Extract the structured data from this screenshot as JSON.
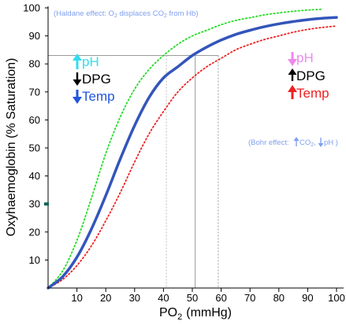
{
  "chart_data": {
    "type": "line",
    "title": "",
    "xlabel": "PO",
    "xlabel_sub": "2",
    "xlabel_unit": "(mmHg)",
    "ylabel": "Oxyhaemoglobin (% Saturation)",
    "xlim": [
      0,
      100
    ],
    "ylim": [
      0,
      100
    ],
    "x_ticks": [
      10,
      20,
      30,
      40,
      50,
      60,
      70,
      80,
      90,
      100
    ],
    "y_ticks": [
      10,
      20,
      30,
      40,
      50,
      60,
      70,
      80,
      90,
      100
    ],
    "grid": false,
    "series": [
      {
        "color": "#22dd22",
        "style": "dotted",
        "x": [
          0,
          5,
          10,
          15,
          20,
          25,
          30,
          35,
          40,
          45,
          50,
          55,
          60,
          65,
          70,
          75,
          80,
          85,
          90,
          95
        ],
        "values": [
          0,
          6,
          17,
          32,
          48,
          61,
          71,
          78,
          83,
          87,
          90,
          92,
          94,
          95.5,
          96.5,
          97.5,
          98.2,
          98.8,
          99.2,
          99.5
        ]
      },
      {
        "color": "#3355bb",
        "style": "solid",
        "x": [
          0,
          5,
          10,
          15,
          20,
          25,
          30,
          35,
          40,
          45,
          50,
          55,
          60,
          65,
          70,
          75,
          80,
          85,
          90,
          95,
          100
        ],
        "values": [
          0,
          4,
          11,
          21,
          33,
          46,
          58,
          68,
          75,
          79,
          83,
          86,
          88.5,
          90.5,
          92,
          93.3,
          94.3,
          95.1,
          95.8,
          96.3,
          96.6
        ]
      },
      {
        "color": "#ee2222",
        "style": "dotted",
        "x": [
          0,
          5,
          10,
          15,
          20,
          25,
          30,
          35,
          40,
          45,
          50,
          55,
          60,
          65,
          70,
          75,
          80,
          85,
          90,
          95,
          100
        ],
        "values": [
          0,
          3,
          8,
          15,
          24,
          34,
          45,
          55,
          63,
          70,
          75,
          79,
          82,
          85,
          87,
          88.7,
          90,
          91.3,
          92.3,
          93,
          93.5
        ]
      }
    ],
    "reference_lines": {
      "y": 83,
      "x": [
        41,
        51,
        59
      ],
      "colors": [
        "#bbbbbb",
        "#999999",
        "#999999"
      ],
      "styles": [
        "dotted",
        "solid",
        "dotted"
      ]
    },
    "highlight_tick": {
      "y": 30,
      "color": "#116655"
    }
  },
  "annotations": {
    "haldane": {
      "prefix": "(Haldane effect: O",
      "sub1": "2",
      "middle": " displaces CO",
      "sub2": "2",
      "suffix": " from Hb)",
      "color": "#7f9fee"
    },
    "bohr": {
      "prefix": "(Bohr effect:",
      "co2": "CO",
      "sub": "2",
      "sep": ",",
      "ph": "pH )",
      "color": "#7f9fee"
    },
    "left_factors": [
      {
        "text": "pH",
        "color": "#33ddee",
        "arrow": "up"
      },
      {
        "text": "DPG",
        "color": "#000000",
        "arrow": "down"
      },
      {
        "text": "Temp",
        "color": "#2255dd",
        "arrow": "down"
      }
    ],
    "right_factors": [
      {
        "text": "pH",
        "color": "#ee88ee",
        "arrow": "down"
      },
      {
        "text": "DPG",
        "color": "#000000",
        "arrow": "up"
      },
      {
        "text": "Temp",
        "color": "#ee2222",
        "arrow": "up"
      }
    ]
  }
}
